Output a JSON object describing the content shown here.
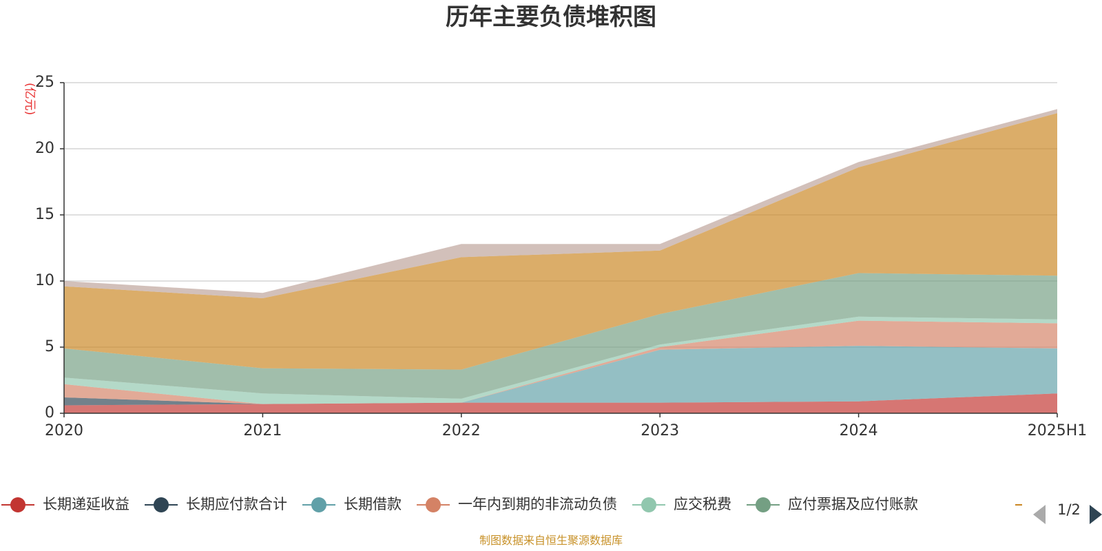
{
  "chart_data": {
    "type": "area",
    "title": "历年主要负债堆积图",
    "unit_label": "(亿元)",
    "x": [
      "2020",
      "2021",
      "2022",
      "2023",
      "2024",
      "2025H1"
    ],
    "ylim": [
      0,
      25
    ],
    "yticks": [
      0,
      5,
      10,
      15,
      20,
      25
    ],
    "grid": true,
    "stacked": true,
    "series": [
      {
        "name": "长期递延收益",
        "color": "#c23531",
        "values": [
          0.6,
          0.7,
          0.8,
          0.8,
          0.9,
          1.5
        ]
      },
      {
        "name": "长期应付款合计",
        "color": "#2f4554",
        "values": [
          0.6,
          0.0,
          0.0,
          0.0,
          0.0,
          0.0
        ]
      },
      {
        "name": "长期借款",
        "color": "#61a0a8",
        "values": [
          0.0,
          0.0,
          0.0,
          4.0,
          4.2,
          3.4
        ]
      },
      {
        "name": "一年内到期的非流动负债",
        "color": "#d48265",
        "values": [
          1.0,
          0.0,
          0.0,
          0.2,
          1.9,
          1.9
        ]
      },
      {
        "name": "应交税费",
        "color": "#91c7ae",
        "values": [
          0.5,
          0.8,
          0.3,
          0.2,
          0.3,
          0.3
        ]
      },
      {
        "name": "应付票据及应付账款",
        "color": "#749f83",
        "values": [
          2.2,
          1.9,
          2.2,
          2.3,
          3.3,
          3.3
        ]
      },
      {
        "name": "",
        "color": "#ca8622",
        "values": [
          4.7,
          5.3,
          8.5,
          4.8,
          8.0,
          12.3
        ]
      },
      {
        "name": "",
        "color": "#bda29a",
        "values": [
          0.4,
          0.4,
          1.0,
          0.5,
          0.4,
          0.3
        ]
      }
    ],
    "legend": {
      "position": "bottom",
      "page": "1/2"
    },
    "source_note": "制图数据来自恒生聚源数据库"
  }
}
